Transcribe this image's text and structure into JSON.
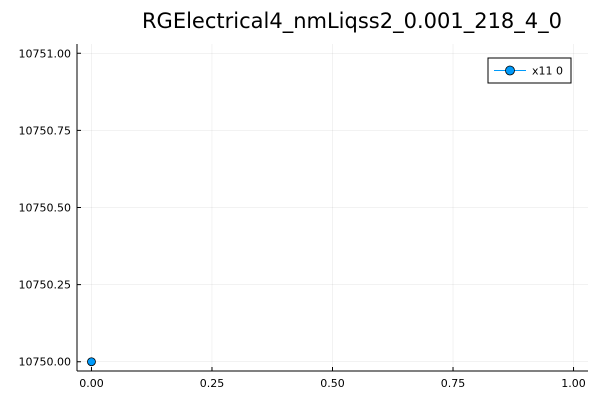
{
  "chart_data": {
    "type": "line",
    "title": "RGElectrical4_nmLiqss2_0.001_218_4_0",
    "xlabel": "",
    "ylabel": "",
    "xlim": [
      -0.03,
      1.03
    ],
    "ylim": [
      10749.97,
      10751.03
    ],
    "x_ticks": [
      0.0,
      0.25,
      0.5,
      0.75,
      1.0
    ],
    "x_tick_labels": [
      "0.00",
      "0.25",
      "0.50",
      "0.75",
      "1.00"
    ],
    "y_ticks": [
      10750.0,
      10750.25,
      10750.5,
      10750.75,
      10751.0
    ],
    "y_tick_labels": [
      "10750.00",
      "10750.25",
      "10750.50",
      "10750.75",
      "10751.00"
    ],
    "grid": true,
    "legend_position": "top-right",
    "series": [
      {
        "name": "x11 0",
        "color": "#009AFA",
        "marker": "circle",
        "x": [
          0.0
        ],
        "y": [
          10750.0
        ]
      }
    ]
  }
}
